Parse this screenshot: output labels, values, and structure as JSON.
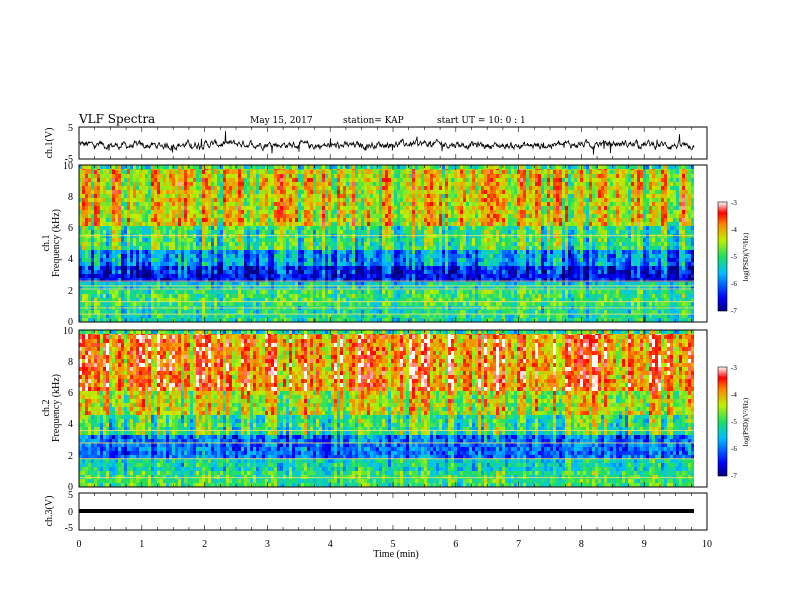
{
  "header": {
    "title": "VLF Spectra",
    "date": "May 15, 2017",
    "station": "station= KAP",
    "start": "start UT =   10: 0  : 1"
  },
  "chart_data": [
    {
      "type": "line",
      "ylabel": "ch.1(V)",
      "ylim": [
        -5,
        5
      ],
      "yticks": [
        "5",
        "-5"
      ],
      "xlim": [
        0,
        10
      ],
      "description_values": {
        "typical_range": [
          -1.5,
          1.0
        ],
        "x_end": 9.8
      }
    },
    {
      "type": "heatmap",
      "ylabel": "ch.1\nFrequency (kHz)",
      "ylabel_lines": [
        "ch.1",
        "Frequency (kHz)"
      ],
      "ylim": [
        0,
        10
      ],
      "yticks": [
        "0",
        "2",
        "4",
        "6",
        "8",
        "10"
      ],
      "xlim": [
        0,
        10
      ],
      "x_end": 9.8,
      "colorbar": {
        "label": "log(PSD)(V²/Hz)",
        "range": [
          -7,
          -3
        ],
        "ticks": [
          "-3",
          "-4",
          "-5",
          "-6",
          "-7"
        ]
      },
      "bands": [
        {
          "fmin": 0.0,
          "fmax": 1.0,
          "level": -5.2
        },
        {
          "fmin": 1.0,
          "fmax": 2.0,
          "level": -5.0
        },
        {
          "fmin": 2.0,
          "fmax": 2.6,
          "level": -5.4
        },
        {
          "fmin": 2.6,
          "fmax": 3.5,
          "level": -6.5
        },
        {
          "fmin": 3.5,
          "fmax": 4.5,
          "level": -5.8
        },
        {
          "fmin": 4.5,
          "fmax": 6.0,
          "level": -5.0
        },
        {
          "fmin": 6.0,
          "fmax": 10.0,
          "level": -4.3
        }
      ],
      "lines_khz": [
        2.1,
        2.3,
        2.6,
        5.5,
        0.5,
        0.9,
        1.3
      ]
    },
    {
      "type": "heatmap",
      "ylabel": "ch.2\nFrequency (kHz)",
      "ylabel_lines": [
        "ch.2",
        "Frequency (kHz)"
      ],
      "ylim": [
        0,
        10
      ],
      "yticks": [
        "0",
        "2",
        "4",
        "6",
        "8",
        "10"
      ],
      "xlim": [
        0,
        10
      ],
      "x_end": 9.8,
      "colorbar": {
        "label": "log(PSD)(V²/Hz)",
        "range": [
          -7,
          -3
        ],
        "ticks": [
          "-3",
          "-4",
          "-5",
          "-6",
          "-7"
        ]
      },
      "bands": [
        {
          "fmin": 0.0,
          "fmax": 1.0,
          "level": -5.0
        },
        {
          "fmin": 1.0,
          "fmax": 1.8,
          "level": -5.3
        },
        {
          "fmin": 1.8,
          "fmax": 3.2,
          "level": -6.0
        },
        {
          "fmin": 3.2,
          "fmax": 4.5,
          "level": -5.0
        },
        {
          "fmin": 4.5,
          "fmax": 6.0,
          "level": -4.4
        },
        {
          "fmin": 6.0,
          "fmax": 10.0,
          "level": -3.8
        }
      ],
      "lines_khz": [
        3.6,
        1.8,
        2.8,
        0.6
      ]
    },
    {
      "type": "line",
      "ylabel": "ch.3(V)",
      "ylim": [
        -5,
        5
      ],
      "yticks": [
        "5",
        "0",
        "-5"
      ],
      "xlim": [
        0,
        10
      ],
      "xlabel": "Time (min)",
      "xticks": [
        "0",
        "1",
        "2",
        "3",
        "4",
        "5",
        "6",
        "7",
        "8",
        "9",
        "10"
      ],
      "description_values": {
        "constant": -1.0,
        "x_end": 9.8
      }
    }
  ]
}
